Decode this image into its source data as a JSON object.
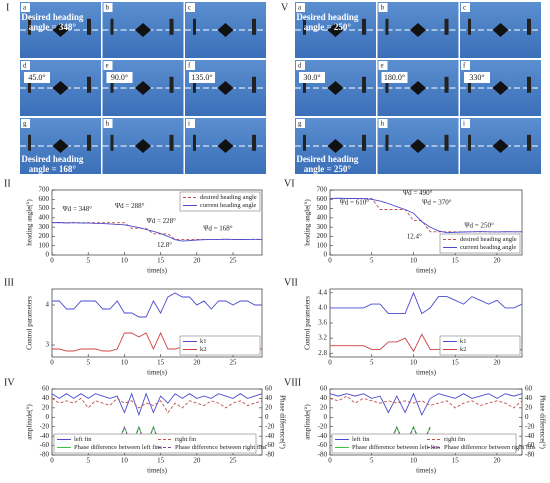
{
  "photo_panels": [
    {
      "label": "I",
      "cells": [
        {
          "letter": "a",
          "text": "Desired heading angle = 348°"
        },
        {
          "letter": "b"
        },
        {
          "letter": "c"
        },
        {
          "letter": "d",
          "text": "45.0°"
        },
        {
          "letter": "e",
          "text": "90.0°"
        },
        {
          "letter": "f",
          "text": "135.0°"
        },
        {
          "letter": "g",
          "text": "Desired heading angle = 168°"
        },
        {
          "letter": "h"
        },
        {
          "letter": "i"
        }
      ]
    },
    {
      "label": "V",
      "cells": [
        {
          "letter": "a",
          "text": "Desired heading angle = 250°"
        },
        {
          "letter": "b"
        },
        {
          "letter": "c"
        },
        {
          "letter": "d",
          "text": "30.0°"
        },
        {
          "letter": "e",
          "text": "180.0°"
        },
        {
          "letter": "f",
          "text": "330°"
        },
        {
          "letter": "g",
          "text": "Desired heading angle = 250°"
        },
        {
          "letter": "h"
        },
        {
          "letter": "i"
        }
      ]
    }
  ],
  "chart_data": [
    {
      "type": "line",
      "label": "II",
      "xlabel": "time(s)",
      "ylabel": "heading angle(°)",
      "xlim": [
        0,
        29
      ],
      "xticks": [
        0,
        5,
        10,
        15,
        20,
        25
      ],
      "ylim": [
        0,
        700
      ],
      "yticks": [
        0,
        100,
        200,
        300,
        400,
        500,
        600,
        700
      ],
      "legend": "upper right",
      "x": [
        0,
        1,
        2,
        3,
        4,
        5,
        6,
        7,
        8,
        9,
        10,
        11,
        12,
        13,
        14,
        15,
        16,
        17,
        18,
        19,
        20,
        21,
        22,
        23,
        24,
        25,
        26,
        27,
        28,
        29
      ],
      "series": [
        {
          "name": "desired heading angle",
          "color": "#c0504d",
          "dash": true,
          "values": [
            348,
            348,
            348,
            348,
            348,
            348,
            348,
            348,
            348,
            348,
            348,
            288,
            288,
            288,
            228,
            228,
            228,
            168,
            168,
            168,
            168,
            168,
            168,
            168,
            168,
            168,
            168,
            168,
            168,
            168
          ]
        },
        {
          "name": "current heading angle",
          "color": "#4a4ad0",
          "values": [
            348,
            350,
            345,
            348,
            344,
            346,
            340,
            338,
            335,
            330,
            325,
            310,
            295,
            275,
            255,
            230,
            200,
            165,
            150,
            155,
            160,
            165,
            168,
            168,
            170,
            168,
            167,
            168,
            169,
            168
          ]
        }
      ],
      "annotations": [
        "Ψd = 348°",
        "Ψd = 288°",
        "Ψd = 228°",
        "Ψd = 168°",
        "12.8°"
      ]
    },
    {
      "type": "line",
      "label": "III",
      "xlabel": "time(s)",
      "ylabel": "Control parameters",
      "xlim": [
        0,
        29
      ],
      "xticks": [
        0,
        5,
        10,
        15,
        20,
        25
      ],
      "ylim": [
        2.7,
        4.4
      ],
      "yticks": [
        3,
        4
      ],
      "legend": "lower right",
      "x": [
        0,
        1,
        2,
        3,
        4,
        5,
        6,
        7,
        8,
        9,
        10,
        11,
        12,
        13,
        14,
        15,
        16,
        17,
        18,
        19,
        20,
        21,
        22,
        23,
        24,
        25,
        26,
        27,
        28,
        29
      ],
      "series": [
        {
          "name": "k1",
          "color": "#4a4ad0",
          "values": [
            4.1,
            4.1,
            3.9,
            3.9,
            4.1,
            4.1,
            4.1,
            3.9,
            3.9,
            4.1,
            3.8,
            3.8,
            3.7,
            3.7,
            4.1,
            3.8,
            4.2,
            4.3,
            4.2,
            4.2,
            4.0,
            4.1,
            3.9,
            4.1,
            4.1,
            4.0,
            4.1,
            4.1,
            4.0,
            4.0
          ]
        },
        {
          "name": "k2",
          "color": "#d04040",
          "values": [
            2.9,
            2.9,
            2.85,
            2.85,
            2.9,
            2.9,
            2.9,
            2.85,
            2.85,
            2.9,
            3.3,
            3.3,
            3.2,
            3.3,
            2.9,
            3.3,
            2.9,
            2.9,
            2.95,
            2.95,
            2.9,
            2.9,
            2.95,
            2.9,
            2.85,
            2.9,
            2.95,
            2.9,
            2.9,
            2.9
          ]
        }
      ]
    },
    {
      "type": "line",
      "label": "IV",
      "xlabel": "time(s)",
      "ylabel": "amplitude(°)",
      "y2label": "Phase difference(°)",
      "xlim": [
        0,
        29
      ],
      "xticks": [
        0,
        5,
        10,
        15,
        20,
        25
      ],
      "ylim": [
        -80,
        60
      ],
      "yticks": [
        -80,
        -60,
        -40,
        -20,
        0,
        20,
        40,
        60
      ],
      "y2lim": [
        -80,
        60
      ],
      "y2ticks": [
        -80,
        -60,
        -40,
        -20,
        0,
        20,
        40,
        60
      ],
      "legend": "lower left",
      "x": [
        0,
        1,
        2,
        3,
        4,
        5,
        6,
        7,
        8,
        9,
        10,
        11,
        12,
        13,
        14,
        15,
        16,
        17,
        18,
        19,
        20,
        21,
        22,
        23,
        24,
        25,
        26,
        27,
        28,
        29
      ],
      "series": [
        {
          "name": "left fin",
          "color": "#4a4ad0",
          "values": [
            50,
            40,
            50,
            40,
            50,
            40,
            50,
            45,
            40,
            45,
            10,
            50,
            5,
            50,
            10,
            45,
            30,
            50,
            40,
            50,
            40,
            45,
            40,
            50,
            45,
            40,
            50,
            40,
            45,
            50
          ]
        },
        {
          "name": "right fin",
          "color": "#c0504d",
          "dash": true,
          "values": [
            40,
            30,
            35,
            30,
            40,
            20,
            35,
            30,
            25,
            40,
            30,
            35,
            20,
            30,
            25,
            35,
            10,
            30,
            20,
            35,
            30,
            25,
            35,
            30,
            20,
            30,
            35,
            25,
            30,
            35
          ]
        },
        {
          "name": "Phase difference between left fins",
          "color": "#40c040",
          "axis": "y2",
          "values": [
            null,
            null,
            null,
            null,
            null,
            null,
            null,
            null,
            null,
            -60,
            -20,
            -60,
            -20,
            -60,
            -20,
            -60,
            null,
            null,
            null,
            null,
            null,
            null,
            null,
            null,
            null,
            null,
            null,
            null,
            null,
            null
          ]
        },
        {
          "name": "Phase difference between right fins",
          "color": "#8040a0",
          "dash": true,
          "axis": "y2",
          "values": [
            null,
            null,
            null,
            null,
            null,
            null,
            null,
            null,
            null,
            -62,
            -22,
            -62,
            -22,
            -62,
            -22,
            -62,
            null,
            null,
            null,
            null,
            null,
            null,
            null,
            null,
            null,
            null,
            null,
            null,
            null,
            null
          ]
        }
      ]
    },
    {
      "type": "line",
      "label": "VI",
      "xlabel": "time(s)",
      "ylabel": "heading angle(°)",
      "xlim": [
        0,
        23
      ],
      "xticks": [
        0,
        5,
        10,
        15,
        20
      ],
      "ylim": [
        0,
        700
      ],
      "yticks": [
        0,
        100,
        200,
        300,
        400,
        500,
        600,
        700
      ],
      "legend": "lower right",
      "x": [
        0,
        1,
        2,
        3,
        4,
        5,
        6,
        7,
        8,
        9,
        10,
        11,
        12,
        13,
        14,
        15,
        16,
        17,
        18,
        19,
        20,
        21,
        22,
        23
      ],
      "series": [
        {
          "name": "desired heading angle",
          "color": "#c0504d",
          "dash": true,
          "values": [
            610,
            610,
            610,
            610,
            610,
            610,
            490,
            490,
            490,
            490,
            370,
            370,
            250,
            250,
            250,
            250,
            250,
            250,
            250,
            250,
            250,
            250,
            250,
            250
          ]
        },
        {
          "name": "current heading angle",
          "color": "#4a4ad0",
          "values": [
            610,
            612,
            608,
            610,
            606,
            600,
            580,
            555,
            520,
            490,
            450,
            360,
            300,
            260,
            240,
            245,
            248,
            250,
            252,
            250,
            249,
            251,
            250,
            250
          ]
        }
      ],
      "annotations": [
        "Ψd = 610°",
        "Ψd = 490°",
        "Ψd = 370°",
        "Ψd = 250°",
        "12.4°"
      ]
    },
    {
      "type": "line",
      "label": "VII",
      "xlabel": "time(s)",
      "ylabel": "Control parameters",
      "xlim": [
        0,
        23
      ],
      "xticks": [
        0,
        5,
        10,
        15,
        20
      ],
      "ylim": [
        2.7,
        4.5
      ],
      "yticks": [
        {
          "value": 2.8,
          "label": "2.8"
        },
        {
          "value": 3.2,
          "label": "3.2"
        },
        {
          "value": 3.6,
          "label": "3.6"
        },
        {
          "value": 4,
          "label": "4.0"
        },
        {
          "value": 4.4,
          "label": "4.4"
        }
      ],
      "legend": "lower right",
      "x": [
        0,
        1,
        2,
        3,
        4,
        5,
        6,
        7,
        8,
        9,
        10,
        11,
        12,
        13,
        14,
        15,
        16,
        17,
        18,
        19,
        20,
        21,
        22,
        23
      ],
      "series": [
        {
          "name": "k1",
          "color": "#4a4ad0",
          "values": [
            4.0,
            4.0,
            4.0,
            4.0,
            4.0,
            4.1,
            4.1,
            3.85,
            3.85,
            3.85,
            4.4,
            3.85,
            4.0,
            4.3,
            4.3,
            4.2,
            4.1,
            4.3,
            4.2,
            4.1,
            4.2,
            4.0,
            4.0,
            4.1
          ]
        },
        {
          "name": "k2",
          "color": "#d04040",
          "values": [
            3.0,
            3.0,
            3.0,
            3.0,
            3.0,
            2.9,
            2.9,
            3.1,
            3.1,
            3.2,
            2.85,
            3.3,
            2.9,
            2.9,
            2.95,
            2.9,
            3.0,
            2.9,
            2.95,
            2.9,
            3.0,
            2.9,
            2.85,
            2.9
          ]
        }
      ]
    },
    {
      "type": "line",
      "label": "VIII",
      "xlabel": "time(s)",
      "ylabel": "amplitude(°)",
      "y2label": "Phase difference(°)",
      "xlim": [
        0,
        23
      ],
      "xticks": [
        0,
        5,
        10,
        15,
        20
      ],
      "ylim": [
        -80,
        60
      ],
      "yticks": [
        -80,
        -60,
        -40,
        -20,
        0,
        20,
        40,
        60
      ],
      "y2lim": [
        -80,
        60
      ],
      "y2ticks": [
        -80,
        -60,
        -40,
        -20,
        0,
        20,
        40,
        60
      ],
      "legend": "lower left",
      "x": [
        0,
        1,
        2,
        3,
        4,
        5,
        6,
        7,
        8,
        9,
        10,
        11,
        12,
        13,
        14,
        15,
        16,
        17,
        18,
        19,
        20,
        21,
        22,
        23
      ],
      "series": [
        {
          "name": "left fin",
          "color": "#4a4ad0",
          "values": [
            50,
            45,
            50,
            45,
            50,
            40,
            45,
            10,
            45,
            10,
            50,
            5,
            40,
            50,
            45,
            40,
            50,
            40,
            45,
            50,
            40,
            50,
            45,
            50
          ]
        },
        {
          "name": "right fin",
          "color": "#c0504d",
          "dash": true,
          "values": [
            40,
            35,
            45,
            30,
            40,
            35,
            30,
            35,
            30,
            35,
            30,
            35,
            25,
            30,
            35,
            20,
            30,
            35,
            25,
            30,
            35,
            30,
            20,
            35
          ]
        },
        {
          "name": "Phase difference between left fins",
          "color": "#40c040",
          "axis": "y2",
          "values": [
            null,
            null,
            null,
            null,
            null,
            null,
            null,
            -60,
            -20,
            -60,
            -20,
            -60,
            -20,
            null,
            null,
            null,
            null,
            null,
            null,
            null,
            null,
            null,
            null,
            null
          ]
        },
        {
          "name": "Phase difference between right fins",
          "color": "#8040a0",
          "dash": true,
          "axis": "y2",
          "values": [
            null,
            null,
            null,
            null,
            null,
            null,
            null,
            -62,
            -22,
            -62,
            -22,
            -62,
            -22,
            null,
            null,
            null,
            null,
            null,
            null,
            null,
            null,
            null,
            null,
            null
          ]
        }
      ]
    }
  ]
}
